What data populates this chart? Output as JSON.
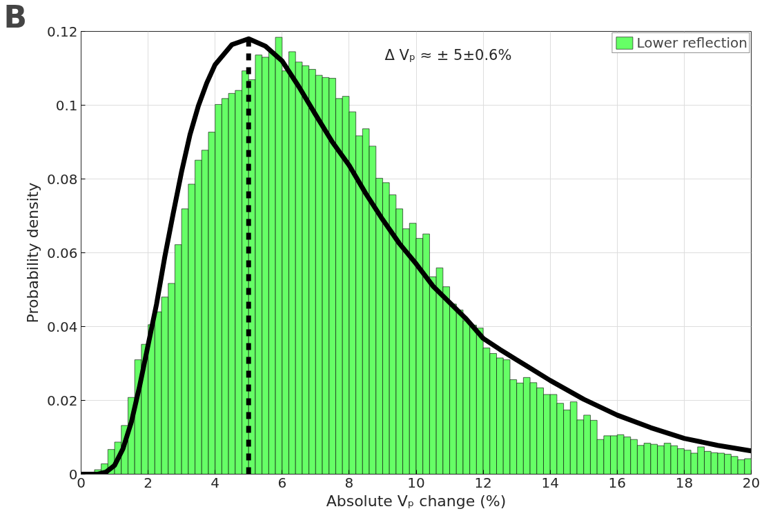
{
  "chart_data": {
    "type": "histogram",
    "title": "B",
    "xlabel": "Absolute Vₚ change (%)",
    "ylabel": "Probability density",
    "annotations": [
      "Δ Vₚ ≈ ± 5±0.6%"
    ],
    "bins": [
      0,
      0.2,
      0.4,
      0.6,
      0.8,
      1,
      1.2,
      1.4,
      1.6,
      1.8,
      2,
      2.2,
      2.4,
      2.6,
      2.8,
      3,
      3.2,
      3.4,
      3.6,
      3.8,
      4,
      4.2,
      4.4,
      4.6,
      4.8,
      5,
      5.2,
      5.4,
      5.6,
      5.8,
      6,
      6.2,
      6.4,
      6.6,
      6.8,
      7,
      7.2,
      7.4,
      7.6,
      7.8,
      8,
      8.2,
      8.4,
      8.6,
      8.8,
      9,
      9.2,
      9.4,
      9.6,
      9.8,
      10,
      10.2,
      10.4,
      10.6,
      10.8,
      11,
      11.2,
      11.4,
      11.6,
      11.8,
      12,
      12.2,
      12.4,
      12.6,
      12.8,
      13,
      13.2,
      13.4,
      13.6,
      13.8,
      14,
      14.2,
      14.4,
      14.6,
      14.8,
      15,
      15.2,
      15.4,
      15.6,
      15.8,
      16,
      16.2,
      16.4,
      16.6,
      16.8,
      17,
      17.2,
      17.4,
      17.6,
      17.8,
      18,
      18.2,
      18.4,
      18.6,
      18.8,
      19,
      19.2,
      19.4,
      19.6,
      19.8,
      20
    ],
    "series": [
      {
        "name": "Lower reflection",
        "color": "#66ff66",
        "values": [
          null,
          null,
          0.0012,
          0.0028,
          0.0067,
          0.0087,
          0.0132,
          0.0208,
          0.031,
          0.0352,
          0.0405,
          0.044,
          0.048,
          0.0517,
          0.0622,
          0.0719,
          0.0786,
          0.0851,
          0.0878,
          0.0927,
          0.1002,
          0.1018,
          0.1032,
          0.104,
          0.1093,
          0.1069,
          0.1136,
          0.113,
          0.1145,
          0.1184,
          0.1093,
          0.1145,
          0.1117,
          0.1107,
          0.1097,
          0.1081,
          0.1075,
          0.1073,
          0.1018,
          0.1024,
          0.0982,
          0.0917,
          0.0936,
          0.0889,
          0.0802,
          0.079,
          0.0757,
          0.0719,
          0.0665,
          0.068,
          0.0639,
          0.0651,
          0.0535,
          0.0559,
          0.0508,
          0.0461,
          0.0445,
          0.0416,
          0.0404,
          0.0396,
          0.0342,
          0.0327,
          0.0315,
          0.031,
          0.0256,
          0.0247,
          0.0262,
          0.0248,
          0.0234,
          0.0216,
          0.0216,
          0.0192,
          0.0174,
          0.0196,
          0.0147,
          0.016,
          0.0146,
          0.0094,
          0.0104,
          0.0104,
          0.0107,
          0.0101,
          0.0094,
          0.0078,
          0.0084,
          0.0081,
          0.0077,
          0.0084,
          0.0077,
          0.0069,
          0.0065,
          0.0057,
          0.0074,
          0.0062,
          0.0058,
          0.0057,
          0.0054,
          0.0048,
          0.0039,
          0.0042
        ]
      },
      {
        "type": "line",
        "color": "#000000",
        "x": [
          0,
          0.5,
          0.75,
          1,
          1.25,
          1.5,
          1.75,
          2,
          2.25,
          2.5,
          2.75,
          3,
          3.25,
          3.5,
          3.75,
          4,
          4.5,
          5,
          5.5,
          6,
          6.5,
          7,
          7.5,
          8,
          8.5,
          9,
          9.5,
          10,
          10.5,
          11,
          11.5,
          12,
          12.5,
          13,
          14,
          15,
          16,
          17,
          18,
          19,
          20
        ],
        "values": [
          0,
          0,
          0.0006,
          0.0024,
          0.0069,
          0.0141,
          0.024,
          0.035,
          0.046,
          0.059,
          0.0707,
          0.082,
          0.092,
          0.0998,
          0.106,
          0.111,
          0.1164,
          0.118,
          0.116,
          0.112,
          0.105,
          0.0974,
          0.09,
          0.0837,
          0.076,
          0.069,
          0.0625,
          0.057,
          0.051,
          0.0465,
          0.042,
          0.0368,
          0.0338,
          0.031,
          0.0254,
          0.0203,
          0.016,
          0.0126,
          0.0097,
          0.0078,
          0.0063
        ]
      },
      {
        "type": "line",
        "color": "#000000",
        "line_style": "dashed",
        "x": [
          5,
          5
        ],
        "values": [
          0,
          0.118
        ]
      }
    ],
    "xlim": [
      0,
      20
    ],
    "ylim": [
      0,
      0.12
    ],
    "xticks": [
      0,
      2,
      4,
      6,
      8,
      10,
      12,
      14,
      16,
      18,
      20
    ],
    "yticks": [
      0,
      0.02,
      0.04,
      0.06,
      0.08,
      0.1,
      0.12
    ],
    "grid": true,
    "legend": "top right"
  }
}
